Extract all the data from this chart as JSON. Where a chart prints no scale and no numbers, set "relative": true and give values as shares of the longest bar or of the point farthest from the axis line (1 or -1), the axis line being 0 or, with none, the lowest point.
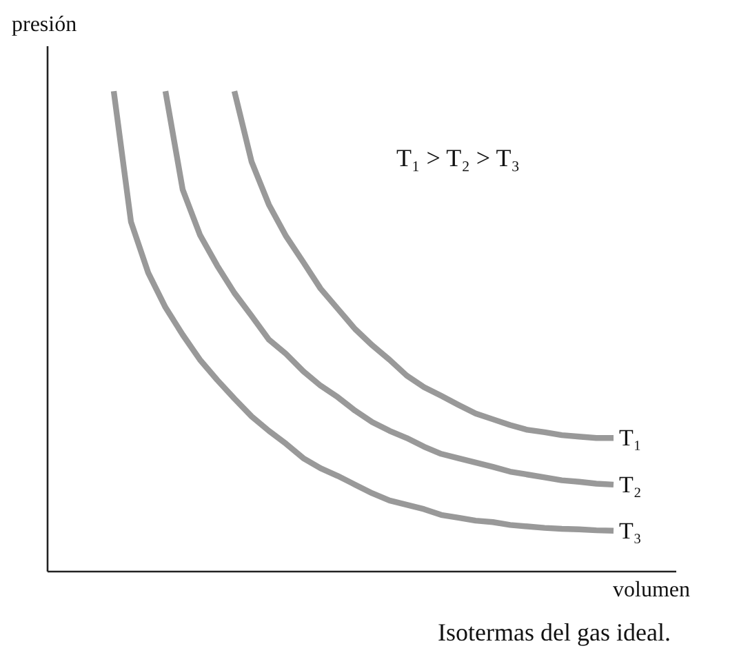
{
  "chart_data": {
    "type": "line",
    "relative": true,
    "xlabel": "volumen",
    "ylabel": "presión",
    "categories": [
      null,
      null,
      null,
      null,
      null,
      null,
      null,
      null,
      null,
      null,
      null,
      null,
      null,
      null,
      null,
      null,
      null,
      null,
      null,
      null,
      null,
      null,
      null,
      null,
      null,
      null,
      null,
      null,
      null,
      null
    ],
    "series": [
      {
        "name": "T₁",
        "color": "#999999",
        "values": [
          null,
          null,
          null,
          null,
          null,
          null,
          null,
          1.0,
          0.853,
          0.764,
          0.698,
          0.644,
          0.589,
          0.547,
          0.505,
          0.471,
          0.441,
          0.408,
          0.384,
          0.366,
          0.347,
          0.329,
          0.317,
          0.305,
          0.295,
          0.29,
          0.284,
          0.281,
          0.278,
          0.278
        ]
      },
      {
        "name": "T₂",
        "color": "#999999",
        "values": [
          null,
          null,
          null,
          1.0,
          0.795,
          0.701,
          0.637,
          0.58,
          0.532,
          0.483,
          0.453,
          0.417,
          0.387,
          0.363,
          0.335,
          0.311,
          0.293,
          0.278,
          0.26,
          0.245,
          0.236,
          0.227,
          0.218,
          0.208,
          0.202,
          0.196,
          0.19,
          0.187,
          0.183,
          0.181
        ]
      },
      {
        "name": "T₃",
        "color": "#999999",
        "values": [
          1.0,
          0.728,
          0.622,
          0.55,
          0.493,
          0.441,
          0.399,
          0.36,
          0.323,
          0.293,
          0.266,
          0.236,
          0.215,
          0.199,
          0.181,
          0.163,
          0.148,
          0.139,
          0.13,
          0.118,
          0.112,
          0.106,
          0.103,
          0.097,
          0.094,
          0.091,
          0.089,
          0.088,
          0.086,
          0.085
        ]
      }
    ],
    "annotations": [
      "T₁ > T₂ > T₃",
      "Isotermas del gas ideal."
    ]
  }
}
